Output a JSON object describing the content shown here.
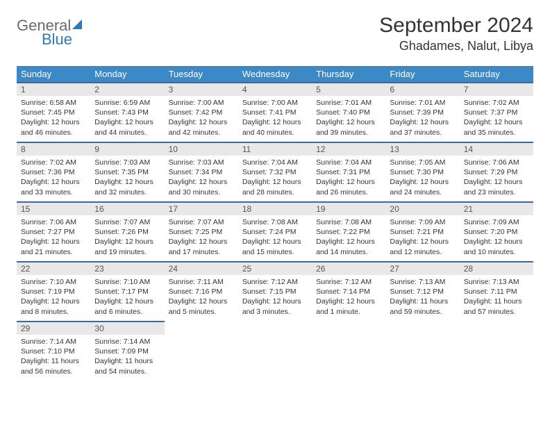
{
  "logo": {
    "text1": "General",
    "text2": "Blue"
  },
  "header": {
    "month_title": "September 2024",
    "location": "Ghadames, Nalut, Libya"
  },
  "weekdays": [
    "Sunday",
    "Monday",
    "Tuesday",
    "Wednesday",
    "Thursday",
    "Friday",
    "Saturday"
  ],
  "colors": {
    "header_bg": "#3b89c7",
    "row_border": "#3b6a99",
    "daynum_bg": "#e8e8e8",
    "logo_blue": "#2a7abf",
    "logo_gray": "#6a6a6a"
  },
  "days": [
    {
      "n": "1",
      "sunrise": "6:58 AM",
      "sunset": "7:45 PM",
      "daylight": "12 hours and 46 minutes."
    },
    {
      "n": "2",
      "sunrise": "6:59 AM",
      "sunset": "7:43 PM",
      "daylight": "12 hours and 44 minutes."
    },
    {
      "n": "3",
      "sunrise": "7:00 AM",
      "sunset": "7:42 PM",
      "daylight": "12 hours and 42 minutes."
    },
    {
      "n": "4",
      "sunrise": "7:00 AM",
      "sunset": "7:41 PM",
      "daylight": "12 hours and 40 minutes."
    },
    {
      "n": "5",
      "sunrise": "7:01 AM",
      "sunset": "7:40 PM",
      "daylight": "12 hours and 39 minutes."
    },
    {
      "n": "6",
      "sunrise": "7:01 AM",
      "sunset": "7:39 PM",
      "daylight": "12 hours and 37 minutes."
    },
    {
      "n": "7",
      "sunrise": "7:02 AM",
      "sunset": "7:37 PM",
      "daylight": "12 hours and 35 minutes."
    },
    {
      "n": "8",
      "sunrise": "7:02 AM",
      "sunset": "7:36 PM",
      "daylight": "12 hours and 33 minutes."
    },
    {
      "n": "9",
      "sunrise": "7:03 AM",
      "sunset": "7:35 PM",
      "daylight": "12 hours and 32 minutes."
    },
    {
      "n": "10",
      "sunrise": "7:03 AM",
      "sunset": "7:34 PM",
      "daylight": "12 hours and 30 minutes."
    },
    {
      "n": "11",
      "sunrise": "7:04 AM",
      "sunset": "7:32 PM",
      "daylight": "12 hours and 28 minutes."
    },
    {
      "n": "12",
      "sunrise": "7:04 AM",
      "sunset": "7:31 PM",
      "daylight": "12 hours and 26 minutes."
    },
    {
      "n": "13",
      "sunrise": "7:05 AM",
      "sunset": "7:30 PM",
      "daylight": "12 hours and 24 minutes."
    },
    {
      "n": "14",
      "sunrise": "7:06 AM",
      "sunset": "7:29 PM",
      "daylight": "12 hours and 23 minutes."
    },
    {
      "n": "15",
      "sunrise": "7:06 AM",
      "sunset": "7:27 PM",
      "daylight": "12 hours and 21 minutes."
    },
    {
      "n": "16",
      "sunrise": "7:07 AM",
      "sunset": "7:26 PM",
      "daylight": "12 hours and 19 minutes."
    },
    {
      "n": "17",
      "sunrise": "7:07 AM",
      "sunset": "7:25 PM",
      "daylight": "12 hours and 17 minutes."
    },
    {
      "n": "18",
      "sunrise": "7:08 AM",
      "sunset": "7:24 PM",
      "daylight": "12 hours and 15 minutes."
    },
    {
      "n": "19",
      "sunrise": "7:08 AM",
      "sunset": "7:22 PM",
      "daylight": "12 hours and 14 minutes."
    },
    {
      "n": "20",
      "sunrise": "7:09 AM",
      "sunset": "7:21 PM",
      "daylight": "12 hours and 12 minutes."
    },
    {
      "n": "21",
      "sunrise": "7:09 AM",
      "sunset": "7:20 PM",
      "daylight": "12 hours and 10 minutes."
    },
    {
      "n": "22",
      "sunrise": "7:10 AM",
      "sunset": "7:19 PM",
      "daylight": "12 hours and 8 minutes."
    },
    {
      "n": "23",
      "sunrise": "7:10 AM",
      "sunset": "7:17 PM",
      "daylight": "12 hours and 6 minutes."
    },
    {
      "n": "24",
      "sunrise": "7:11 AM",
      "sunset": "7:16 PM",
      "daylight": "12 hours and 5 minutes."
    },
    {
      "n": "25",
      "sunrise": "7:12 AM",
      "sunset": "7:15 PM",
      "daylight": "12 hours and 3 minutes."
    },
    {
      "n": "26",
      "sunrise": "7:12 AM",
      "sunset": "7:14 PM",
      "daylight": "12 hours and 1 minute."
    },
    {
      "n": "27",
      "sunrise": "7:13 AM",
      "sunset": "7:12 PM",
      "daylight": "11 hours and 59 minutes."
    },
    {
      "n": "28",
      "sunrise": "7:13 AM",
      "sunset": "7:11 PM",
      "daylight": "11 hours and 57 minutes."
    },
    {
      "n": "29",
      "sunrise": "7:14 AM",
      "sunset": "7:10 PM",
      "daylight": "11 hours and 56 minutes."
    },
    {
      "n": "30",
      "sunrise": "7:14 AM",
      "sunset": "7:09 PM",
      "daylight": "11 hours and 54 minutes."
    }
  ],
  "labels": {
    "sunrise": "Sunrise:",
    "sunset": "Sunset:",
    "daylight": "Daylight:"
  }
}
